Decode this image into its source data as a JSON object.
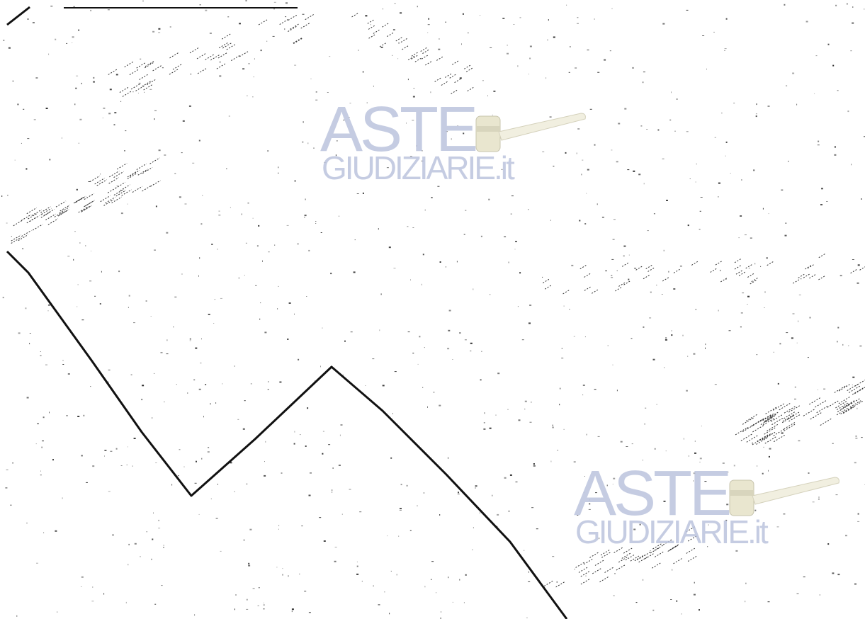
{
  "watermark": {
    "line1": "ASTE",
    "line2": "GIUDIZIARIE.it"
  },
  "colors": {
    "line": "#111111",
    "speckle": "#222222",
    "watermark": "#bcc4dd",
    "gavel_head": "#e9e6cf",
    "gavel_handle": "#f1efe0"
  },
  "icons": [
    "gavel-icon"
  ]
}
